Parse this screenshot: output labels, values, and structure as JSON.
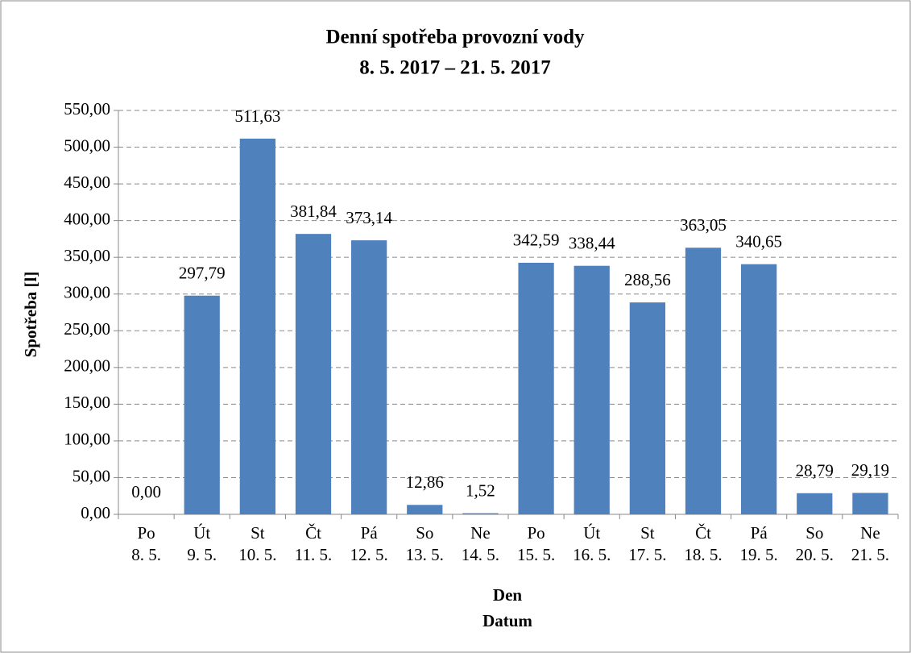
{
  "chart_data": {
    "type": "bar",
    "title": "Denní spotřeba provozní vody",
    "subtitle": "8. 5. 2017 – 21. 5. 2017",
    "xlabel": [
      "Den",
      "Datum"
    ],
    "ylabel": "Spotřeba [l]",
    "categories": [
      [
        "Po",
        "8. 5."
      ],
      [
        "Út",
        "9. 5."
      ],
      [
        "St",
        "10. 5."
      ],
      [
        "Čt",
        "11. 5."
      ],
      [
        "Pá",
        "12. 5."
      ],
      [
        "So",
        "13. 5."
      ],
      [
        "Ne",
        "14. 5."
      ],
      [
        "Po",
        "15. 5."
      ],
      [
        "Út",
        "16. 5."
      ],
      [
        "St",
        "17. 5."
      ],
      [
        "Čt",
        "18. 5."
      ],
      [
        "Pá",
        "19. 5."
      ],
      [
        "So",
        "20. 5."
      ],
      [
        "Ne",
        "21. 5."
      ]
    ],
    "values": [
      0,
      297.79,
      511.63,
      381.84,
      373.14,
      12.86,
      1.52,
      342.59,
      338.44,
      288.56,
      363.05,
      340.65,
      28.79,
      29.19
    ],
    "value_labels": [
      "0,00",
      "297,79",
      "511,63",
      "381,84",
      "373,14",
      "12,86",
      "1,52",
      "342,59",
      "338,44",
      "288,56",
      "363,05",
      "340,65",
      "28,79",
      "29,19"
    ],
    "color": "#4f81bd",
    "ylim": [
      0,
      550
    ],
    "yticks": [
      {
        "value": 0,
        "label": "0,00"
      },
      {
        "value": 50,
        "label": "50,00"
      },
      {
        "value": 100,
        "label": "100,00"
      },
      {
        "value": 150,
        "label": "150,00"
      },
      {
        "value": 200,
        "label": "200,00"
      },
      {
        "value": 250,
        "label": "250,00"
      },
      {
        "value": 300,
        "label": "300,00"
      },
      {
        "value": 350,
        "label": "350,00"
      },
      {
        "value": 400,
        "label": "400,00"
      },
      {
        "value": 450,
        "label": "450,00"
      },
      {
        "value": 500,
        "label": "500,00"
      },
      {
        "value": 550,
        "label": "550,00"
      }
    ],
    "grid": true
  }
}
